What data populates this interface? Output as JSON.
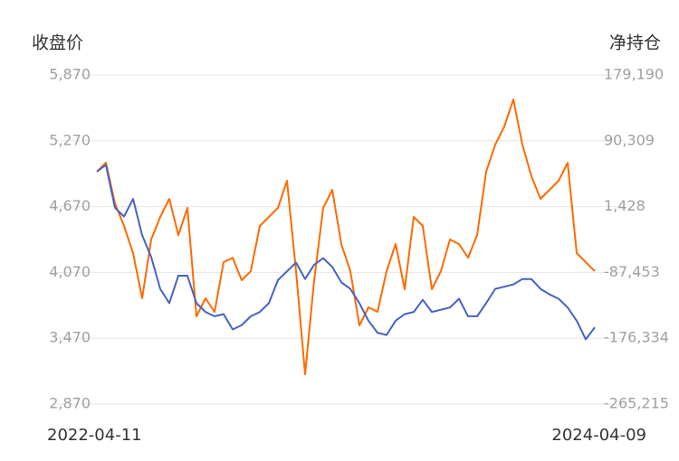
{
  "chart_data": {
    "type": "line",
    "ylabel": "收盘价",
    "y2label": "净持仓",
    "categories": [
      "2022-04-11",
      null,
      null,
      null,
      null,
      null,
      null,
      null,
      null,
      null,
      null,
      null,
      null,
      null,
      null,
      null,
      null,
      null,
      null,
      null,
      null,
      null,
      null,
      null,
      null,
      null,
      null,
      null,
      null,
      null,
      null,
      null,
      null,
      null,
      null,
      null,
      null,
      null,
      null,
      null,
      null,
      null,
      null,
      null,
      null,
      null,
      null,
      null,
      null,
      null,
      null,
      null,
      null,
      null,
      null,
      "2024-04-09"
    ],
    "ylim": [
      2870,
      5870
    ],
    "yticks": [
      {
        "value": 2870,
        "label": "2,870"
      },
      {
        "value": 3470,
        "label": "3,470"
      },
      {
        "value": 4070,
        "label": "4,070"
      },
      {
        "value": 4670,
        "label": "4,670"
      },
      {
        "value": 5270,
        "label": "5,270"
      },
      {
        "value": 5870,
        "label": "5,870"
      }
    ],
    "y2lim": [
      -265215,
      179190
    ],
    "y2ticks": [
      {
        "value": -265215,
        "label": "-265,215"
      },
      {
        "value": -176334,
        "label": "-176,334"
      },
      {
        "value": -87453,
        "label": "-87,453"
      },
      {
        "value": 1428,
        "label": "1,428"
      },
      {
        "value": 90309,
        "label": "90,309"
      },
      {
        "value": 179190,
        "label": "179,190"
      }
    ],
    "grid": true,
    "series": [
      {
        "name": "收盘价",
        "color": "#4462c4",
        "values": [
          4990,
          5050,
          4660,
          4580,
          4740,
          4410,
          4210,
          3920,
          3790,
          4040,
          4040,
          3790,
          3710,
          3670,
          3690,
          3550,
          3590,
          3670,
          3710,
          3790,
          4000,
          4080,
          4160,
          4010,
          4140,
          4200,
          4120,
          3980,
          3920,
          3790,
          3630,
          3520,
          3500,
          3630,
          3690,
          3710,
          3820,
          3710,
          3730,
          3750,
          3830,
          3670,
          3670,
          3790,
          3920,
          3940,
          3960,
          4010,
          4010,
          3920,
          3870,
          3830,
          3750,
          3630,
          3460,
          3570
        ]
      },
      {
        "name": "净持仓",
        "color": "#ff6a00",
        "axis": "y2",
        "values": [
          48500,
          60750,
          5800,
          -24700,
          -61300,
          -122400,
          -43000,
          -12500,
          11900,
          -37000,
          -300,
          -146800,
          -122400,
          -140700,
          -73600,
          -67500,
          -98000,
          -85800,
          -24700,
          -12500,
          -300,
          36300,
          -85800,
          -225000,
          -98000,
          -300,
          24100,
          -49100,
          -85800,
          -159000,
          -134600,
          -140700,
          -85800,
          -49100,
          -110200,
          -12500,
          -24700,
          -110200,
          -85800,
          -43000,
          -49100,
          -67500,
          -37000,
          48500,
          85200,
          109600,
          146200,
          85200,
          42400,
          11900,
          24100,
          36300,
          60700,
          -61300,
          -73600,
          -85800
        ]
      }
    ]
  }
}
